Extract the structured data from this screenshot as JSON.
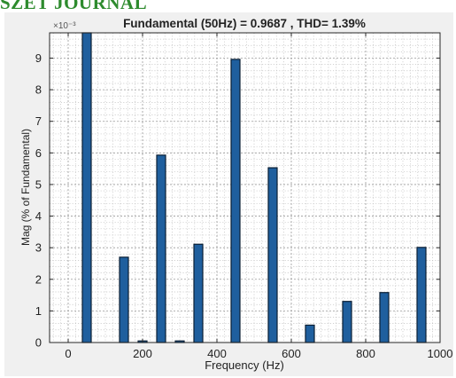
{
  "watermark": "SZET JOURNAL",
  "chart_data": {
    "type": "bar",
    "title": "Fundamental (50Hz) = 0.9687 , THD= 1.39%",
    "xlabel": "Frequency (Hz)",
    "ylabel": "Mag (% of Fundamental)",
    "y_exponent_label": "×10⁻³",
    "xlim": [
      -50,
      1000
    ],
    "ylim": [
      0,
      0.0098
    ],
    "x_ticks": [
      0,
      200,
      400,
      600,
      800,
      1000
    ],
    "y_ticks": [
      0,
      1,
      2,
      3,
      4,
      5,
      6,
      7,
      8,
      9
    ],
    "grid": true,
    "minor_grid": true,
    "bar_color": "#1f5f9e",
    "x": [
      50,
      150,
      200,
      250,
      300,
      350,
      450,
      550,
      650,
      750,
      850,
      950
    ],
    "values": [
      0.0098,
      0.0027,
      5e-05,
      0.00593,
      5e-05,
      0.00311,
      0.00896,
      0.00553,
      0.00055,
      0.0013,
      0.00158,
      0.00301
    ]
  }
}
